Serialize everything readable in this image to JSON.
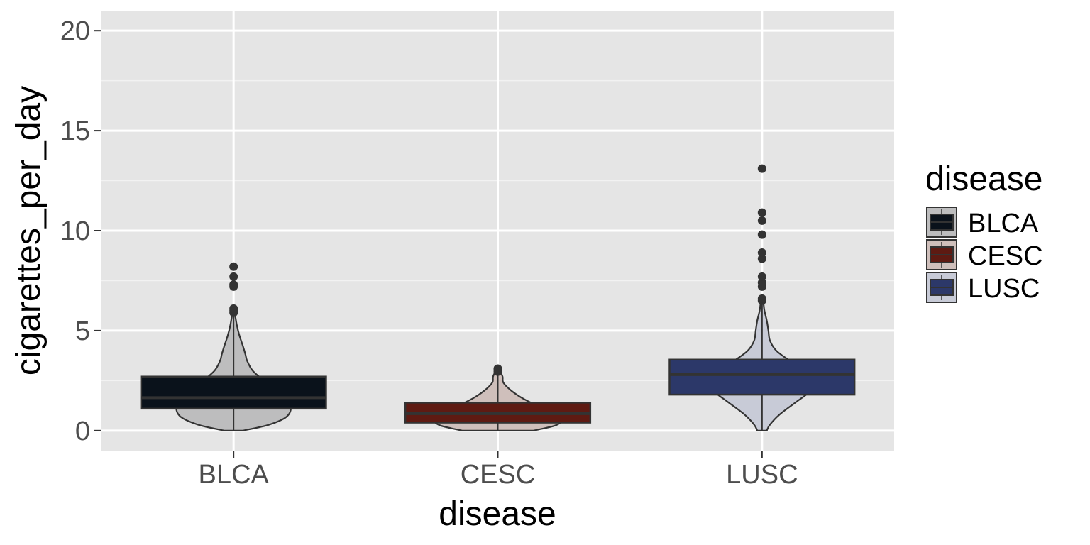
{
  "chart_data": {
    "type": "violin+box",
    "xlabel": "disease",
    "ylabel": "cigarettes_per_day",
    "ylim": [
      -1,
      21
    ],
    "yticks": [
      0,
      5,
      10,
      15,
      20
    ],
    "categories": [
      "BLCA",
      "CESC",
      "LUSC"
    ],
    "grid": true,
    "legend": {
      "title": "disease",
      "placement": "right",
      "items": [
        "BLCA",
        "CESC",
        "LUSC"
      ]
    },
    "series": [
      {
        "name": "BLCA",
        "fill": "#0a121b",
        "violin_fill": "#bdbdbe",
        "box": {
          "q1": 1.1,
          "median": 1.65,
          "q3": 2.7,
          "whisker_low": 0,
          "whisker_high": 5.8
        },
        "outliers": [
          5.9,
          6.0,
          6.1,
          7.2,
          7.3,
          7.7,
          8.2
        ],
        "density": [
          [
            0,
            0.12
          ],
          [
            0.3,
            0.45
          ],
          [
            0.7,
            0.67
          ],
          [
            1.2,
            0.72
          ],
          [
            1.6,
            0.62
          ],
          [
            2.0,
            0.5
          ],
          [
            2.5,
            0.38
          ],
          [
            3.0,
            0.24
          ],
          [
            3.5,
            0.17
          ],
          [
            3.8,
            0.15
          ],
          [
            4.2,
            0.12
          ],
          [
            4.8,
            0.07
          ],
          [
            5.3,
            0.04
          ],
          [
            5.8,
            0.015
          ]
        ]
      },
      {
        "name": "CESC",
        "fill": "#5e1a12",
        "violin_fill": "#cfbfbb",
        "box": {
          "q1": 0.4,
          "median": 0.85,
          "q3": 1.4,
          "whisker_low": 0,
          "whisker_high": 2.9
        },
        "outliers": [
          2.95,
          3.05,
          3.1
        ],
        "density": [
          [
            0,
            0.45
          ],
          [
            0.25,
            0.72
          ],
          [
            0.5,
            0.8
          ],
          [
            0.8,
            0.72
          ],
          [
            1.2,
            0.52
          ],
          [
            1.6,
            0.32
          ],
          [
            2.0,
            0.17
          ],
          [
            2.4,
            0.07
          ],
          [
            2.7,
            0.06
          ],
          [
            3.0,
            0.02
          ]
        ]
      },
      {
        "name": "LUSC",
        "fill": "#2c3869",
        "violin_fill": "#c8cbd7",
        "box": {
          "q1": 1.8,
          "median": 2.8,
          "q3": 3.55,
          "whisker_low": 0,
          "whisker_high": 6.4
        },
        "outliers": [
          6.5,
          6.6,
          7.2,
          7.4,
          7.7,
          8.6,
          8.9,
          9.8,
          10.5,
          10.9,
          13.1
        ],
        "density": [
          [
            0,
            0.06
          ],
          [
            0.3,
            0.1
          ],
          [
            0.8,
            0.22
          ],
          [
            1.4,
            0.42
          ],
          [
            2.0,
            0.62
          ],
          [
            2.5,
            0.7
          ],
          [
            3.0,
            0.55
          ],
          [
            3.5,
            0.35
          ],
          [
            4.0,
            0.18
          ],
          [
            4.5,
            0.1
          ],
          [
            5.0,
            0.08
          ],
          [
            5.5,
            0.06
          ],
          [
            6.0,
            0.03
          ],
          [
            6.4,
            0.015
          ]
        ]
      }
    ]
  }
}
